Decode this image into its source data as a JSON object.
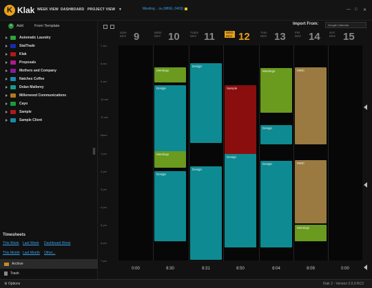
{
  "app": {
    "logo_text": "Klak"
  },
  "nav": {
    "week_view": "WEEK VIEW",
    "dashboard": "DASHBOARD",
    "project_view": "PROJECT VIEW"
  },
  "status": "Meeting .. ou (MNG, 0403)",
  "window": {
    "minimize": "—",
    "maximize": "□",
    "close": "✕"
  },
  "sidebar": {
    "add": "Add",
    "from_template": "From Template",
    "projects": [
      {
        "name": "Automatic Laundry",
        "color": "#2fa33a"
      },
      {
        "name": "StatTrade",
        "color": "#1a2aa8"
      },
      {
        "name": "Klak",
        "color": "#b01a1a"
      },
      {
        "name": "Proposals",
        "color": "#b01a8a"
      },
      {
        "name": "Mothers and Company",
        "color": "#8a1a9a"
      },
      {
        "name": "Natches Coffee",
        "color": "#1a8aaa"
      },
      {
        "name": "Dolan Mallorey",
        "color": "#1a9a8a"
      },
      {
        "name": "Millerwood Communications",
        "color": "#b07a1a"
      },
      {
        "name": "Cayo",
        "color": "#1a9a3a"
      },
      {
        "name": "Sample",
        "color": "#b01a1a"
      },
      {
        "name": "Sample Client",
        "color": "#1a8aaa"
      }
    ],
    "timesheets": {
      "title": "Timesheets",
      "links_row1": [
        "This Week",
        "Last Week",
        "Dashboard Week"
      ],
      "links_row2": [
        "This Month",
        "Last Month",
        "Other..."
      ]
    },
    "archive": "Archive",
    "trash": "Trash"
  },
  "footer": {
    "options": "Options",
    "version": "Klak 2 - Version 2.0.0 RC2"
  },
  "calendar": {
    "import_label": "Import From:",
    "import_value": "Google Calendar",
    "days": [
      {
        "name": "SUN",
        "month": "MAY",
        "num": "9",
        "total": "0:00",
        "today": false
      },
      {
        "name": "MON",
        "month": "MAY",
        "num": "10",
        "total": "8:30",
        "today": false
      },
      {
        "name": "TUES",
        "month": "MAY",
        "num": "11",
        "total": "8:31",
        "today": false
      },
      {
        "name": "WED",
        "month": "MAY",
        "num": "12",
        "total": "8:50",
        "today": true
      },
      {
        "name": "THU",
        "month": "MAY",
        "num": "13",
        "total": "8:04",
        "today": false
      },
      {
        "name": "FRI",
        "month": "MAY",
        "num": "14",
        "total": "8:09",
        "today": false
      },
      {
        "name": "SAT",
        "month": "MAY",
        "num": "15",
        "total": "0:00",
        "today": false
      }
    ],
    "time_labels": [
      "7 am",
      "8 am",
      "9 am",
      "10 am",
      "11 am",
      "Noon",
      "1 pm",
      "2 pm",
      "3 pm",
      "4 pm",
      "5 pm",
      "6 pm",
      "7 pm"
    ],
    "events": [
      {
        "day": 1,
        "label": "Meetings",
        "color": "#6a9a1e"
      },
      {
        "day": 1,
        "label": "Design",
        "color": "#0e8a92"
      },
      {
        "day": 1,
        "label": "Meetings",
        "color": "#6a9a1e"
      },
      {
        "day": 1,
        "label": "Design",
        "color": "#0e8a92"
      },
      {
        "day": 2,
        "label": "Design",
        "color": "#0e8a92"
      },
      {
        "day": 2,
        "label": "Design",
        "color": "#0e8a92"
      },
      {
        "day": 3,
        "label": "Sample",
        "color": "#8a0e0e"
      },
      {
        "day": 3,
        "label": "Design",
        "color": "#0e8a92"
      },
      {
        "day": 4,
        "label": "Meetings",
        "color": "#6a9a1e"
      },
      {
        "day": 4,
        "label": "Design",
        "color": "#0e8a92"
      },
      {
        "day": 4,
        "label": "Design",
        "color": "#0e8a92"
      },
      {
        "day": 5,
        "label": "MWC",
        "color": "#9a7a40"
      },
      {
        "day": 5,
        "label": "MWC",
        "color": "#9a7a40"
      },
      {
        "day": 5,
        "label": "Meetings",
        "color": "#6a9a1e"
      }
    ]
  }
}
